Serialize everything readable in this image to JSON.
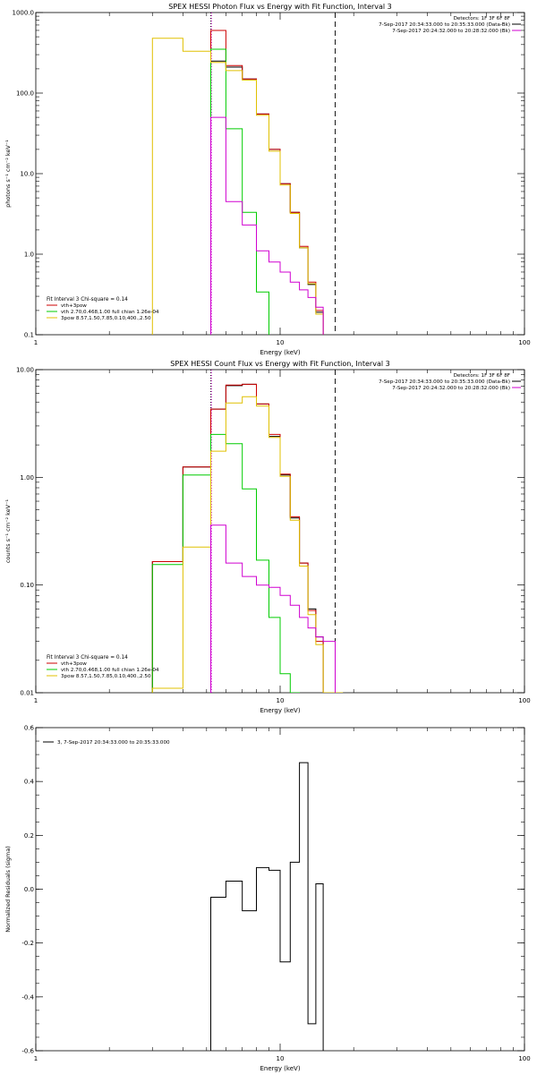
{
  "chart_data": [
    {
      "type": "line",
      "title": "SPEX HESSI Photon Flux vs Energy with Fit Function, Interval 3",
      "xlabel": "Energy (keV)",
      "ylabel": "photons s⁻¹ cm⁻² keV⁻¹",
      "xscale": "log",
      "yscale": "log",
      "xlim": [
        1,
        100
      ],
      "ylim": [
        0.1,
        1000
      ],
      "xticks": [
        {
          "v": 1,
          "label": "1"
        },
        {
          "v": 10,
          "label": "10"
        },
        {
          "v": 100,
          "label": "100"
        }
      ],
      "yticks": [
        {
          "v": 0.1,
          "label": "0.1"
        },
        {
          "v": 1,
          "label": "1.0"
        },
        {
          "v": 10,
          "label": "10.0"
        },
        {
          "v": 100,
          "label": "100.0"
        },
        {
          "v": 1000,
          "label": "1000.0"
        }
      ],
      "vlines": [
        {
          "x": 5.2,
          "style": "dotted",
          "color": "#000000"
        },
        {
          "x": 5.2,
          "style": "dotted",
          "color": "#d000d0"
        },
        {
          "x": 16.8,
          "style": "dashed",
          "color": "#000000"
        }
      ],
      "info_lines": [
        "Detectors: 1F 3F 6F 8F",
        "7-Sep-2017 20:34:33.000 to 20:35:33.000 (Data-Bk)",
        "7-Sep-2017 20:24:32.000 to 20:28:32.000 (Bk)"
      ],
      "legend_title": "Fit Interval 3   Chi-square = 0.14",
      "legend": [
        "vth+3pow",
        "vth 2.70,0.468,1.00  full chian 1.26e-04",
        "3pow 8.57,1.50,7.85,0.10,400.,2.50"
      ],
      "legend_colors": [
        "#cc0000",
        "#00cc00",
        "#e0c000"
      ],
      "edges": [
        3,
        4,
        5.2,
        6,
        7,
        8,
        9,
        10,
        11,
        12,
        13,
        14,
        15,
        16.8
      ],
      "series": [
        {
          "color": "#000000",
          "values": [
            null,
            null,
            250,
            210,
            150,
            55,
            20,
            7.5,
            3.3,
            1.2,
            0.42,
            0.19,
            null
          ]
        },
        {
          "color": "#cc0000",
          "values": [
            null,
            null,
            600,
            220,
            150,
            55,
            20,
            7.5,
            3.3,
            1.25,
            0.45,
            0.2,
            null
          ]
        },
        {
          "color": "#00cc00",
          "values": [
            null,
            null,
            350,
            36,
            3.3,
            0.34,
            null,
            null,
            null,
            null,
            null,
            null,
            null
          ]
        },
        {
          "color": "#e0c000",
          "values": [
            480,
            330,
            240,
            190,
            145,
            53,
            19,
            7.2,
            3.2,
            1.2,
            0.43,
            0.18,
            null
          ]
        },
        {
          "color": "#d000d0",
          "values": [
            null,
            null,
            50,
            4.5,
            2.3,
            1.1,
            0.8,
            0.6,
            0.45,
            0.36,
            0.29,
            0.22,
            null
          ]
        }
      ]
    },
    {
      "type": "line",
      "title": "SPEX HESSI Count Flux vs Energy with Fit Function, Interval 3",
      "xlabel": "Energy (keV)",
      "ylabel": "counts s⁻¹ cm⁻² keV⁻¹",
      "xscale": "log",
      "yscale": "log",
      "xlim": [
        1,
        100
      ],
      "ylim": [
        0.01,
        10
      ],
      "xticks": [
        {
          "v": 1,
          "label": "1"
        },
        {
          "v": 10,
          "label": "10"
        },
        {
          "v": 100,
          "label": "100"
        }
      ],
      "yticks": [
        {
          "v": 0.01,
          "label": "0.01"
        },
        {
          "v": 0.1,
          "label": "0.10"
        },
        {
          "v": 1,
          "label": "1.00"
        },
        {
          "v": 10,
          "label": "10.00"
        }
      ],
      "vlines": [
        {
          "x": 5.2,
          "style": "dotted",
          "color": "#000000"
        },
        {
          "x": 5.2,
          "style": "dotted",
          "color": "#d000d0"
        },
        {
          "x": 16.8,
          "style": "dashed",
          "color": "#000000"
        }
      ],
      "info_lines": [
        "Detectors: 1F 3F 6F 8F",
        "7-Sep-2017 20:34:33.000 to 20:35:33.000 (Data-Bk)",
        "7-Sep-2017 20:24:32.000 to 20:28:32.000 (Bk)"
      ],
      "legend_title": "Fit Interval 3   Chi-square = 0.14",
      "legend": [
        "vth+3pow",
        "vth 2.70,0.468,1.00  full chian 1.26e-04",
        "3pow 8.57,1.50,7.85,0.10,400.,2.50"
      ],
      "legend_colors": [
        "#cc0000",
        "#00cc00",
        "#e0c000"
      ],
      "edges": [
        3,
        4,
        5.2,
        6,
        7,
        8,
        9,
        10,
        11,
        12,
        13,
        14,
        15,
        16.8,
        18
      ],
      "series": [
        {
          "color": "#000000",
          "values": [
            0.165,
            1.25,
            4.3,
            7.1,
            7.3,
            4.8,
            2.4,
            1.05,
            0.42,
            0.16,
            0.06,
            0.033,
            null,
            null
          ]
        },
        {
          "color": "#cc0000",
          "values": [
            0.165,
            1.25,
            4.3,
            7.2,
            7.3,
            4.8,
            2.5,
            1.07,
            0.43,
            0.16,
            0.058,
            0.03,
            null,
            null
          ]
        },
        {
          "color": "#00cc00",
          "values": [
            0.155,
            1.05,
            2.5,
            2.05,
            0.78,
            0.17,
            0.05,
            0.015,
            0.01,
            null,
            null,
            null,
            null,
            null
          ]
        },
        {
          "color": "#e0c000",
          "values": [
            0.011,
            0.225,
            1.75,
            4.9,
            5.6,
            4.6,
            2.35,
            1.02,
            0.4,
            0.15,
            0.053,
            0.028,
            0.01,
            0.01
          ]
        },
        {
          "color": "#d000d0",
          "values": [
            null,
            null,
            0.36,
            0.16,
            0.12,
            0.1,
            0.095,
            0.08,
            0.065,
            0.05,
            0.04,
            0.033,
            0.03,
            null
          ]
        }
      ]
    },
    {
      "type": "line",
      "title": "",
      "xlabel": "Energy (keV)",
      "ylabel": "Normalized Residuals (sigma)",
      "xscale": "log",
      "yscale": "linear",
      "xlim": [
        1,
        100
      ],
      "ylim": [
        -0.6,
        0.6
      ],
      "xticks": [
        {
          "v": 1,
          "label": "1"
        },
        {
          "v": 10,
          "label": "10"
        },
        {
          "v": 100,
          "label": "100"
        }
      ],
      "yticks": [
        {
          "v": -0.6,
          "label": "-0.6"
        },
        {
          "v": -0.4,
          "label": "-0.4"
        },
        {
          "v": -0.2,
          "label": "-0.2"
        },
        {
          "v": 0,
          "label": "0.0"
        },
        {
          "v": 0.2,
          "label": "0.2"
        },
        {
          "v": 0.4,
          "label": "0.4"
        },
        {
          "v": 0.6,
          "label": "0.6"
        }
      ],
      "legend": [
        "3,  7-Sep-2017 20:34:33.000 to 20:35:33.000"
      ],
      "legend_colors": [
        "#000000"
      ],
      "edges": [
        5.2,
        6,
        7,
        8,
        9,
        10,
        11,
        12,
        13,
        14,
        15,
        16.8
      ],
      "series": [
        {
          "color": "#000000",
          "values": [
            -0.03,
            0.03,
            -0.08,
            0.08,
            0.07,
            -0.27,
            0.1,
            0.47,
            -0.5,
            0.02,
            null
          ]
        }
      ]
    }
  ]
}
